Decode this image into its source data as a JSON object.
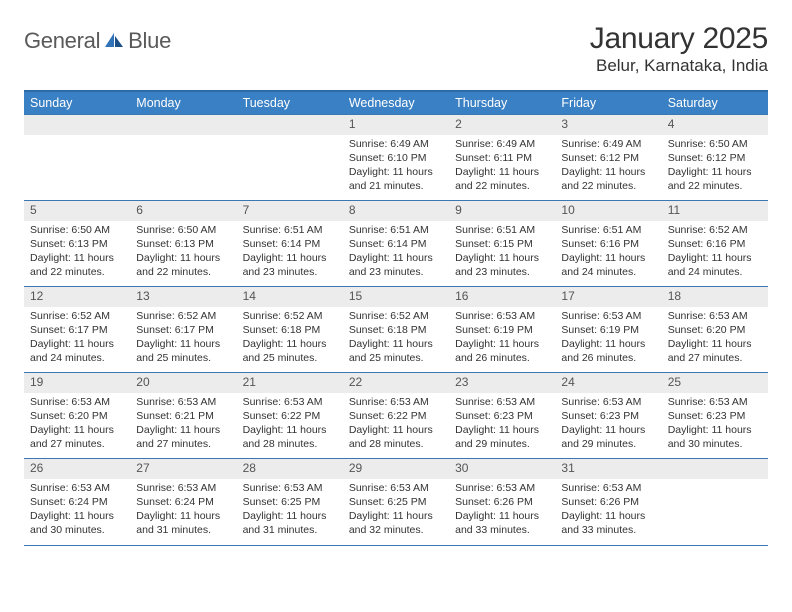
{
  "brand": {
    "name_a": "General",
    "name_b": "Blue"
  },
  "title": "January 2025",
  "location": "Belur, Karnataka, India",
  "colors": {
    "header_bg": "#3a80c4",
    "header_border_top": "#2f6aa8",
    "row_border": "#3a78b4",
    "daynum_bg": "#ececec",
    "text": "#333333",
    "logo_gray": "#5a5a5a",
    "logo_blue": "#2f72b8"
  },
  "weekdays": [
    "Sunday",
    "Monday",
    "Tuesday",
    "Wednesday",
    "Thursday",
    "Friday",
    "Saturday"
  ],
  "leading_blanks": 3,
  "days": [
    {
      "n": 1,
      "sunrise": "6:49 AM",
      "sunset": "6:10 PM",
      "daylight": "11 hours and 21 minutes."
    },
    {
      "n": 2,
      "sunrise": "6:49 AM",
      "sunset": "6:11 PM",
      "daylight": "11 hours and 22 minutes."
    },
    {
      "n": 3,
      "sunrise": "6:49 AM",
      "sunset": "6:12 PM",
      "daylight": "11 hours and 22 minutes."
    },
    {
      "n": 4,
      "sunrise": "6:50 AM",
      "sunset": "6:12 PM",
      "daylight": "11 hours and 22 minutes."
    },
    {
      "n": 5,
      "sunrise": "6:50 AM",
      "sunset": "6:13 PM",
      "daylight": "11 hours and 22 minutes."
    },
    {
      "n": 6,
      "sunrise": "6:50 AM",
      "sunset": "6:13 PM",
      "daylight": "11 hours and 22 minutes."
    },
    {
      "n": 7,
      "sunrise": "6:51 AM",
      "sunset": "6:14 PM",
      "daylight": "11 hours and 23 minutes."
    },
    {
      "n": 8,
      "sunrise": "6:51 AM",
      "sunset": "6:14 PM",
      "daylight": "11 hours and 23 minutes."
    },
    {
      "n": 9,
      "sunrise": "6:51 AM",
      "sunset": "6:15 PM",
      "daylight": "11 hours and 23 minutes."
    },
    {
      "n": 10,
      "sunrise": "6:51 AM",
      "sunset": "6:16 PM",
      "daylight": "11 hours and 24 minutes."
    },
    {
      "n": 11,
      "sunrise": "6:52 AM",
      "sunset": "6:16 PM",
      "daylight": "11 hours and 24 minutes."
    },
    {
      "n": 12,
      "sunrise": "6:52 AM",
      "sunset": "6:17 PM",
      "daylight": "11 hours and 24 minutes."
    },
    {
      "n": 13,
      "sunrise": "6:52 AM",
      "sunset": "6:17 PM",
      "daylight": "11 hours and 25 minutes."
    },
    {
      "n": 14,
      "sunrise": "6:52 AM",
      "sunset": "6:18 PM",
      "daylight": "11 hours and 25 minutes."
    },
    {
      "n": 15,
      "sunrise": "6:52 AM",
      "sunset": "6:18 PM",
      "daylight": "11 hours and 25 minutes."
    },
    {
      "n": 16,
      "sunrise": "6:53 AM",
      "sunset": "6:19 PM",
      "daylight": "11 hours and 26 minutes."
    },
    {
      "n": 17,
      "sunrise": "6:53 AM",
      "sunset": "6:19 PM",
      "daylight": "11 hours and 26 minutes."
    },
    {
      "n": 18,
      "sunrise": "6:53 AM",
      "sunset": "6:20 PM",
      "daylight": "11 hours and 27 minutes."
    },
    {
      "n": 19,
      "sunrise": "6:53 AM",
      "sunset": "6:20 PM",
      "daylight": "11 hours and 27 minutes."
    },
    {
      "n": 20,
      "sunrise": "6:53 AM",
      "sunset": "6:21 PM",
      "daylight": "11 hours and 27 minutes."
    },
    {
      "n": 21,
      "sunrise": "6:53 AM",
      "sunset": "6:22 PM",
      "daylight": "11 hours and 28 minutes."
    },
    {
      "n": 22,
      "sunrise": "6:53 AM",
      "sunset": "6:22 PM",
      "daylight": "11 hours and 28 minutes."
    },
    {
      "n": 23,
      "sunrise": "6:53 AM",
      "sunset": "6:23 PM",
      "daylight": "11 hours and 29 minutes."
    },
    {
      "n": 24,
      "sunrise": "6:53 AM",
      "sunset": "6:23 PM",
      "daylight": "11 hours and 29 minutes."
    },
    {
      "n": 25,
      "sunrise": "6:53 AM",
      "sunset": "6:23 PM",
      "daylight": "11 hours and 30 minutes."
    },
    {
      "n": 26,
      "sunrise": "6:53 AM",
      "sunset": "6:24 PM",
      "daylight": "11 hours and 30 minutes."
    },
    {
      "n": 27,
      "sunrise": "6:53 AM",
      "sunset": "6:24 PM",
      "daylight": "11 hours and 31 minutes."
    },
    {
      "n": 28,
      "sunrise": "6:53 AM",
      "sunset": "6:25 PM",
      "daylight": "11 hours and 31 minutes."
    },
    {
      "n": 29,
      "sunrise": "6:53 AM",
      "sunset": "6:25 PM",
      "daylight": "11 hours and 32 minutes."
    },
    {
      "n": 30,
      "sunrise": "6:53 AM",
      "sunset": "6:26 PM",
      "daylight": "11 hours and 33 minutes."
    },
    {
      "n": 31,
      "sunrise": "6:53 AM",
      "sunset": "6:26 PM",
      "daylight": "11 hours and 33 minutes."
    }
  ],
  "labels": {
    "sunrise": "Sunrise:",
    "sunset": "Sunset:",
    "daylight": "Daylight:"
  }
}
